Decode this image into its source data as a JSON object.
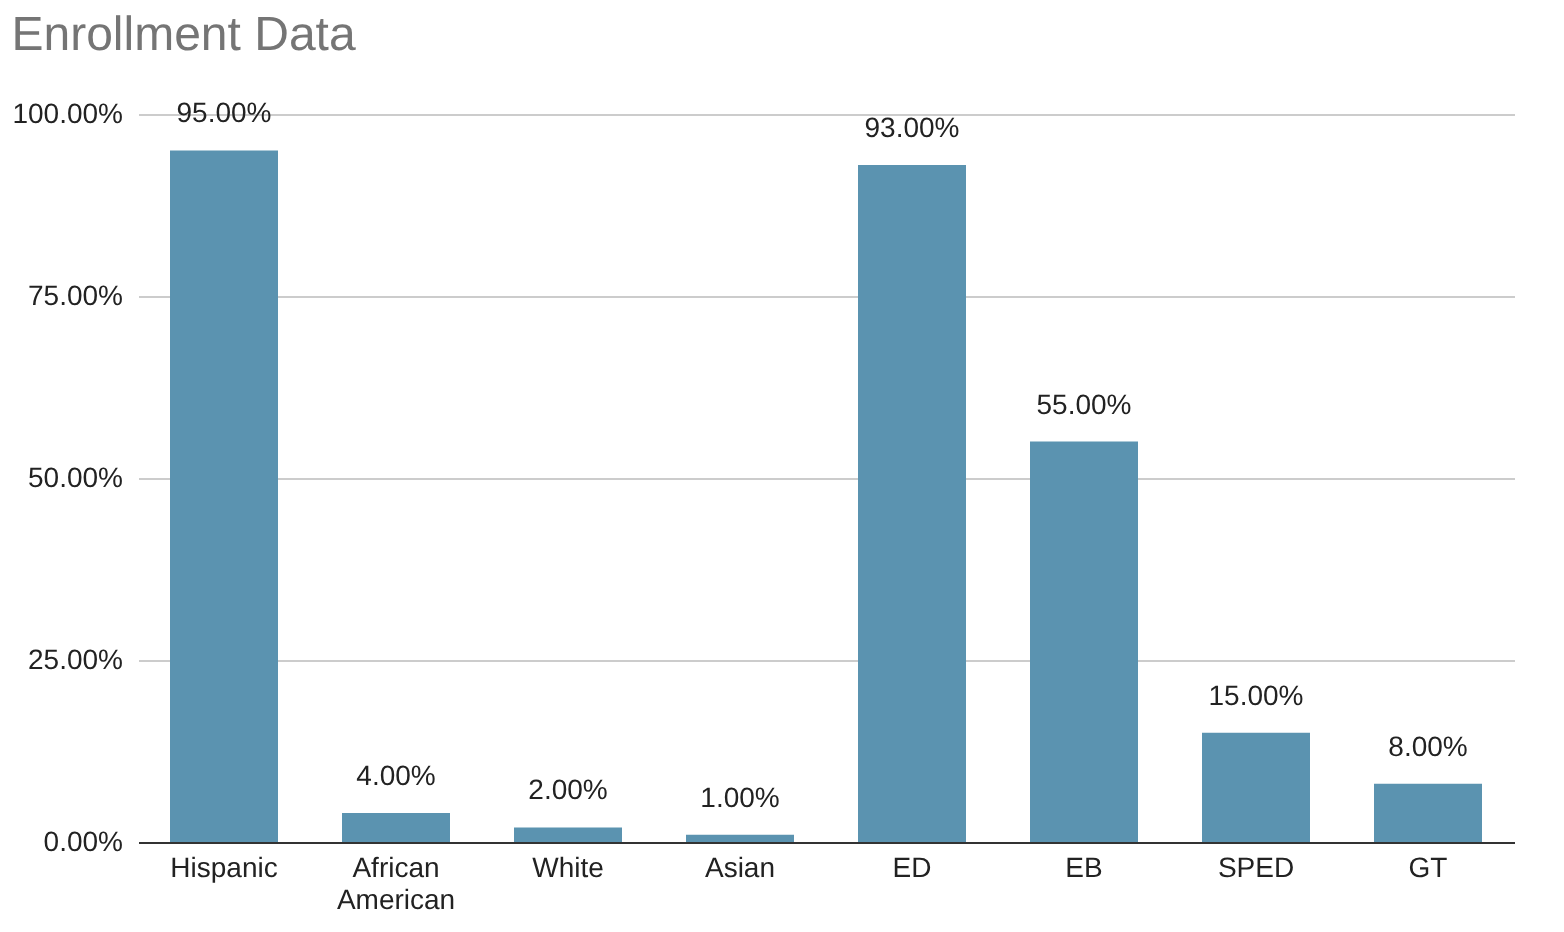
{
  "chart_data": {
    "type": "bar",
    "title": "Enrollment Data",
    "categories": [
      "Hispanic",
      "African American",
      "White",
      "Asian",
      "ED",
      "EB",
      "SPED",
      "GT"
    ],
    "values": [
      95,
      4,
      2,
      1,
      93,
      55,
      15,
      8
    ],
    "value_labels": [
      "95.00%",
      "4.00%",
      "2.00%",
      "1.00%",
      "93.00%",
      "55.00%",
      "15.00%",
      "8.00%"
    ],
    "color": "#5b93b0",
    "ylim": [
      0,
      100
    ],
    "yticks": [
      {
        "value": 0,
        "label": "0.00%"
      },
      {
        "value": 25,
        "label": "25.00%"
      },
      {
        "value": 50,
        "label": "50.00%"
      },
      {
        "value": 75,
        "label": "75.00%"
      },
      {
        "value": 100,
        "label": "100.00%"
      }
    ],
    "grid": "y"
  }
}
